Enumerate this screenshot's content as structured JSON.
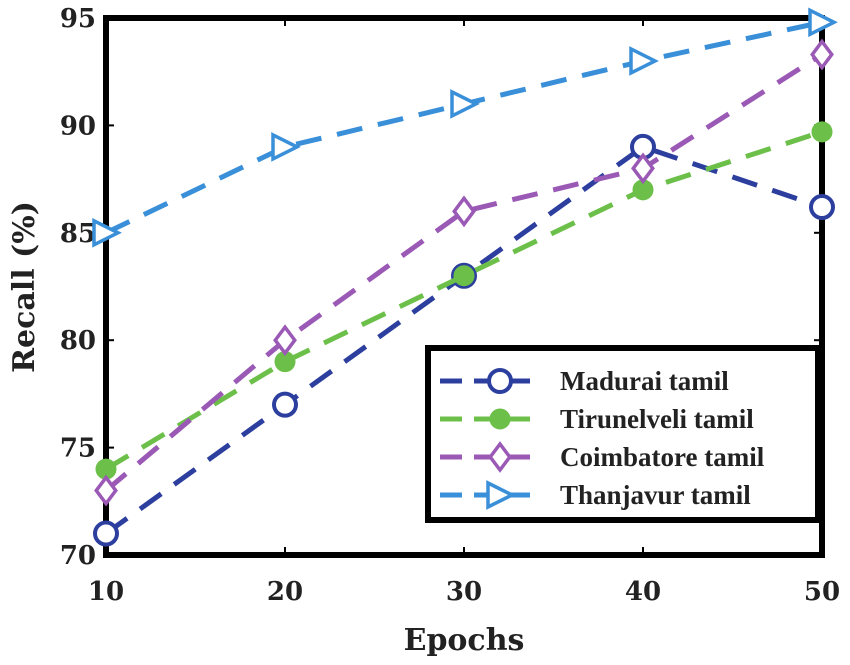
{
  "chart_data": {
    "type": "line",
    "xlabel": "Epochs",
    "ylabel": "Recall (%)",
    "xlim": [
      10,
      50
    ],
    "ylim": [
      70,
      95
    ],
    "x_ticks": [
      10,
      20,
      30,
      40,
      50
    ],
    "y_ticks": [
      70,
      75,
      80,
      85,
      90,
      95
    ],
    "x_tick_labels": [
      "10",
      "20",
      "30",
      "40",
      "50"
    ],
    "y_tick_labels": [
      "70",
      "75",
      "80",
      "85",
      "90",
      "95"
    ],
    "legend_position": "bottom-right",
    "series": [
      {
        "name": "Madurai tamil",
        "x": [
          10,
          20,
          30,
          40,
          50
        ],
        "values": [
          71,
          77,
          83,
          89,
          86.2
        ],
        "color": "#2d3f9e",
        "marker": "circle"
      },
      {
        "name": "Tirunelveli tamil",
        "x": [
          10,
          20,
          30,
          40,
          50
        ],
        "values": [
          74,
          79,
          83,
          87,
          89.7
        ],
        "color": "#6cc04a",
        "marker": "filled-circle"
      },
      {
        "name": "Coimbatore tamil",
        "x": [
          10,
          20,
          30,
          40,
          50
        ],
        "values": [
          73,
          80,
          86,
          88,
          93.3
        ],
        "color": "#9b59b6",
        "marker": "diamond"
      },
      {
        "name": "Thanjavur tamil",
        "x": [
          10,
          20,
          30,
          40,
          50
        ],
        "values": [
          85,
          89,
          91,
          93,
          94.8
        ],
        "color": "#3a8fd9",
        "marker": "triangle-right"
      }
    ]
  }
}
